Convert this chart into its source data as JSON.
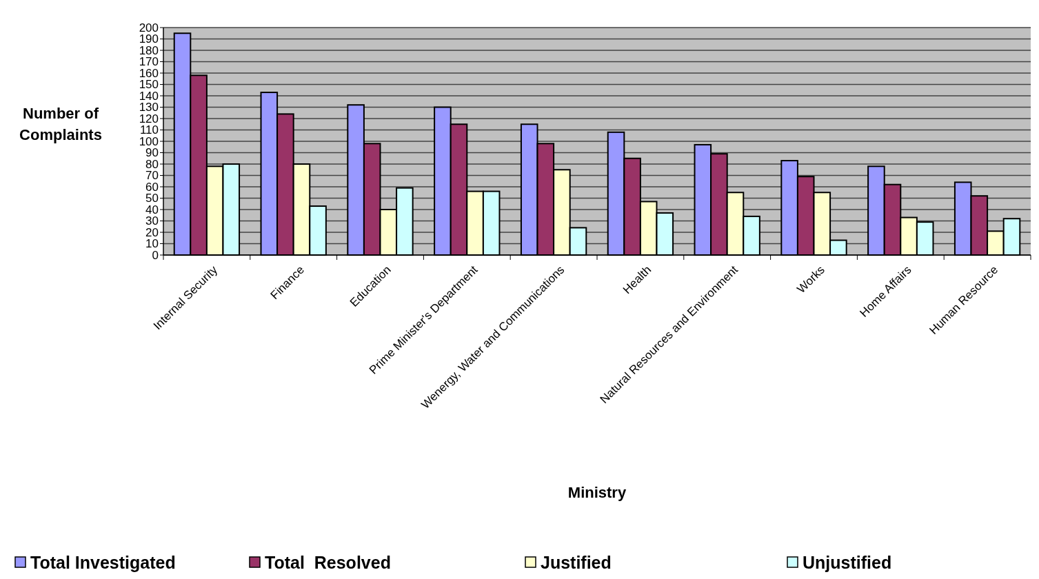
{
  "chart_data": {
    "type": "bar",
    "xlabel": "Ministry",
    "ylabel": "Number of Complaints",
    "categories": [
      "Internal Security",
      "Finance",
      "Education",
      "Prime Minister's Department",
      "Wenergy, Water and Communications",
      "Health",
      "Natural Resources and Environment",
      "Works",
      "Home Affairs",
      "Human Resource"
    ],
    "series": [
      {
        "name": "Total Investigated",
        "color": "#9999ff",
        "values": [
          195,
          143,
          132,
          130,
          115,
          108,
          97,
          83,
          78,
          64
        ]
      },
      {
        "name": "Total  Resolved",
        "color": "#993366",
        "values": [
          158,
          124,
          98,
          115,
          98,
          85,
          89,
          69,
          62,
          52
        ]
      },
      {
        "name": "Justified",
        "color": "#ffffcc",
        "values": [
          78,
          80,
          40,
          56,
          75,
          47,
          55,
          55,
          33,
          21
        ]
      },
      {
        "name": "Unjustified",
        "color": "#ccffff",
        "values": [
          80,
          43,
          59,
          56,
          24,
          37,
          34,
          13,
          29,
          32
        ]
      }
    ],
    "ylim": [
      0,
      200
    ],
    "yticks": [
      0,
      10,
      20,
      30,
      40,
      50,
      60,
      70,
      80,
      90,
      100,
      110,
      120,
      130,
      140,
      150,
      160,
      170,
      180,
      190,
      200
    ],
    "grid": "y",
    "legend": "bottom"
  }
}
